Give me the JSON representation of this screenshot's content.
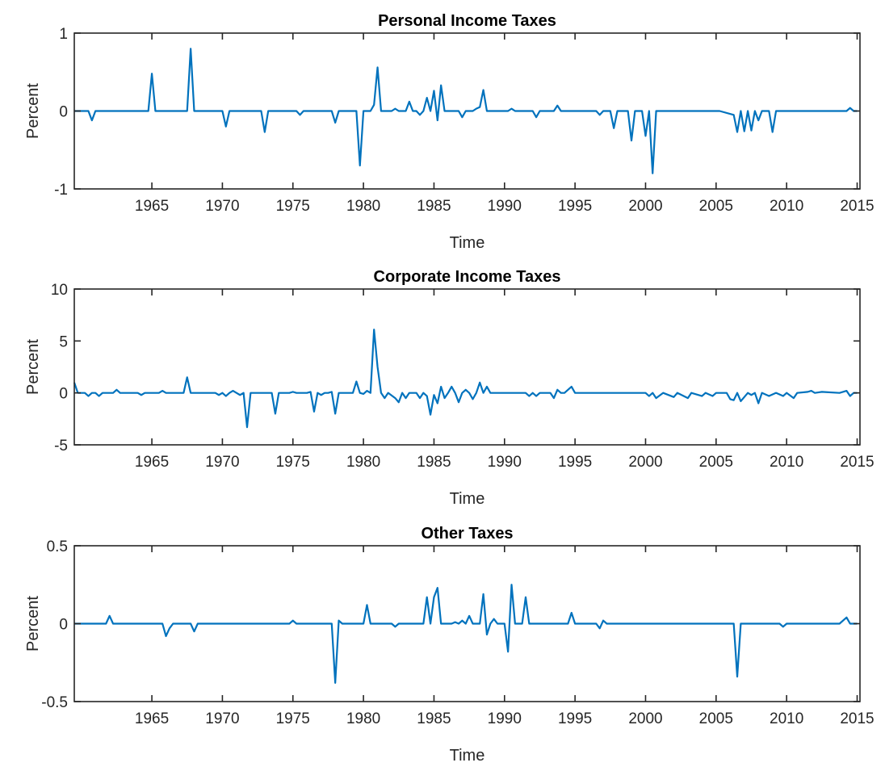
{
  "chart_data": [
    {
      "type": "line",
      "title": "Personal Income Taxes",
      "xlabel": "Time",
      "ylabel": "Percent",
      "x": [
        1959.5,
        1960.5,
        1960.75,
        1961.0,
        1964.75,
        1965.0,
        1965.25,
        1967.5,
        1967.75,
        1968.0,
        1970.0,
        1970.25,
        1970.5,
        1972.75,
        1973.0,
        1973.25,
        1975.25,
        1975.5,
        1975.75,
        1977.75,
        1978.0,
        1978.25,
        1979.5,
        1979.75,
        1980.0,
        1980.5,
        1980.75,
        1981.0,
        1981.25,
        1982.0,
        1982.25,
        1982.5,
        1983.0,
        1983.25,
        1983.5,
        1983.75,
        1984.0,
        1984.25,
        1984.5,
        1984.75,
        1985.0,
        1985.25,
        1985.5,
        1985.75,
        1986.75,
        1987.0,
        1987.25,
        1987.75,
        1988.0,
        1988.25,
        1988.5,
        1988.75,
        1990.25,
        1990.5,
        1990.75,
        1992.0,
        1992.25,
        1992.5,
        1993.5,
        1993.75,
        1994.0,
        1996.5,
        1996.75,
        1997.0,
        1997.5,
        1997.75,
        1998.0,
        1998.75,
        1999.0,
        1999.25,
        1999.75,
        2000.0,
        2000.25,
        2000.5,
        2000.75,
        2005.25,
        2006.25,
        2006.5,
        2006.75,
        2007.0,
        2007.25,
        2007.5,
        2007.75,
        2008.0,
        2008.25,
        2008.75,
        2009.0,
        2009.25,
        2011.75,
        2014.25,
        2014.5,
        2014.75,
        2015.0
      ],
      "series": [
        {
          "color": "#0072bd",
          "values": [
            0,
            0,
            -0.12,
            0,
            0,
            0.48,
            0,
            0,
            0.8,
            0,
            0,
            -0.2,
            0,
            0,
            -0.27,
            0,
            0,
            -0.05,
            0,
            0,
            -0.15,
            0,
            0,
            -0.7,
            0,
            0,
            0.08,
            0.56,
            0,
            0,
            0.03,
            0,
            0,
            0.12,
            0,
            0,
            -0.05,
            0,
            0.17,
            0,
            0.26,
            -0.12,
            0.33,
            0,
            0,
            -0.08,
            0,
            0,
            0.03,
            0.05,
            0.27,
            0,
            0,
            0.03,
            0,
            0,
            -0.08,
            0,
            0,
            0.07,
            0,
            0,
            -0.05,
            0,
            0,
            -0.22,
            0,
            0,
            -0.38,
            0,
            0,
            -0.32,
            0,
            -0.8,
            0,
            0,
            -0.05,
            -0.27,
            0,
            -0.26,
            0,
            -0.25,
            0,
            -0.12,
            0,
            0,
            -0.27,
            0,
            0,
            0,
            0.04,
            0,
            0
          ]
        }
      ],
      "xlim": [
        1959.5,
        2015.2
      ],
      "xticks": [
        1965,
        1970,
        1975,
        1980,
        1985,
        1990,
        1995,
        2000,
        2005,
        2010,
        2015
      ],
      "ylim": [
        -1,
        1
      ],
      "yticks": [
        -1,
        0,
        1
      ]
    },
    {
      "type": "line",
      "title": "Corporate Income Taxes",
      "xlabel": "Time",
      "ylabel": "Percent",
      "x": [
        1959.5,
        1959.75,
        1960.25,
        1960.5,
        1960.75,
        1961.0,
        1961.25,
        1961.5,
        1962.25,
        1962.5,
        1962.75,
        1964.0,
        1964.25,
        1964.5,
        1965.5,
        1965.75,
        1966.0,
        1967.25,
        1967.5,
        1967.75,
        1969.5,
        1969.75,
        1970.0,
        1970.25,
        1970.5,
        1970.75,
        1971.0,
        1971.25,
        1971.5,
        1971.75,
        1972.0,
        1973.5,
        1973.75,
        1974.0,
        1974.75,
        1975.0,
        1975.25,
        1976.0,
        1976.25,
        1976.5,
        1976.75,
        1977.0,
        1977.25,
        1977.5,
        1977.75,
        1978.0,
        1978.25,
        1979.25,
        1979.5,
        1979.75,
        1980.0,
        1980.25,
        1980.5,
        1980.75,
        1981.0,
        1981.25,
        1981.5,
        1981.75,
        1982.25,
        1982.5,
        1982.75,
        1983.0,
        1983.25,
        1983.75,
        1984.0,
        1984.25,
        1984.5,
        1984.75,
        1985.0,
        1985.25,
        1985.5,
        1985.75,
        1986.0,
        1986.25,
        1986.5,
        1986.75,
        1987.0,
        1987.25,
        1987.5,
        1987.75,
        1988.0,
        1988.25,
        1988.5,
        1988.75,
        1989.0,
        1991.5,
        1991.75,
        1992.0,
        1992.25,
        1992.5,
        1993.25,
        1993.5,
        1993.75,
        1994.0,
        1994.25,
        1994.75,
        1995.0,
        1997.25,
        2000.0,
        2000.25,
        2000.5,
        2000.75,
        2001.25,
        2002.0,
        2002.25,
        2003.0,
        2003.25,
        2004.0,
        2004.25,
        2004.75,
        2005.0,
        2005.75,
        2006.0,
        2006.25,
        2006.5,
        2006.75,
        2007.25,
        2007.5,
        2007.75,
        2008.0,
        2008.25,
        2008.75,
        2009.25,
        2009.75,
        2010.0,
        2010.5,
        2010.75,
        2011.5,
        2011.75,
        2012.0,
        2012.5,
        2013.75,
        2014.25,
        2014.5,
        2014.75,
        2015.0
      ],
      "series": [
        {
          "color": "#0072bd",
          "values": [
            1.0,
            0,
            0,
            -0.3,
            0,
            0,
            -0.3,
            0,
            0,
            0.3,
            0,
            0,
            -0.2,
            0,
            0,
            0.2,
            0,
            0,
            1.5,
            0,
            0,
            -0.2,
            0,
            -0.3,
            0,
            0.2,
            0,
            -0.2,
            0,
            -3.3,
            0,
            0,
            -2.0,
            0,
            0,
            0.1,
            0,
            0,
            0.1,
            -1.8,
            0,
            -0.2,
            0,
            0,
            0.1,
            -2.0,
            0,
            0,
            1.1,
            0,
            -0.1,
            0.2,
            0,
            6.1,
            2.5,
            0,
            -0.5,
            0,
            -0.5,
            -0.9,
            0,
            -0.5,
            0,
            0,
            -0.5,
            0,
            -0.3,
            -2.1,
            -0.2,
            -1.0,
            0.6,
            -0.5,
            0,
            0.6,
            0,
            -0.9,
            0,
            0.3,
            0,
            -0.6,
            0,
            1.0,
            0,
            0.6,
            0,
            0,
            -0.3,
            0,
            -0.3,
            0,
            0,
            -0.5,
            0.3,
            0,
            0,
            0.6,
            0,
            0,
            0,
            -0.3,
            0,
            -0.5,
            0,
            -0.4,
            0,
            -0.5,
            0,
            -0.3,
            0,
            -0.3,
            0,
            0,
            -0.6,
            -0.7,
            0,
            -0.8,
            0,
            -0.2,
            0,
            -1.0,
            0,
            -0.3,
            0,
            -0.3,
            0,
            -0.5,
            0,
            0.1,
            0.2,
            0,
            0.1,
            0,
            0.2,
            -0.3,
            0,
            0
          ]
        }
      ],
      "xlim": [
        1959.5,
        2015.2
      ],
      "xticks": [
        1965,
        1970,
        1975,
        1980,
        1985,
        1990,
        1995,
        2000,
        2005,
        2010,
        2015
      ],
      "ylim": [
        -5,
        10
      ],
      "yticks": [
        -5,
        0,
        5,
        10
      ]
    },
    {
      "type": "line",
      "title": "Other Taxes",
      "xlabel": "Time",
      "ylabel": "Percent",
      "x": [
        1959.5,
        1960.5,
        1961.75,
        1962.0,
        1962.25,
        1965.75,
        1966.0,
        1966.25,
        1966.5,
        1967.75,
        1968.0,
        1968.25,
        1974.75,
        1975.0,
        1975.25,
        1977.75,
        1978.0,
        1978.25,
        1978.5,
        1980.0,
        1980.25,
        1980.5,
        1982.0,
        1982.25,
        1982.5,
        1984.25,
        1984.5,
        1984.75,
        1985.0,
        1985.25,
        1985.5,
        1986.25,
        1986.5,
        1986.75,
        1987.0,
        1987.25,
        1987.5,
        1987.75,
        1988.25,
        1988.5,
        1988.75,
        1989.0,
        1989.25,
        1989.5,
        1990.0,
        1990.25,
        1990.5,
        1990.75,
        1991.25,
        1991.5,
        1991.75,
        1994.5,
        1994.75,
        1995.0,
        1996.5,
        1996.75,
        1997.0,
        1997.25,
        2006.25,
        2006.5,
        2006.75,
        2009.5,
        2009.75,
        2010.0,
        2013.75,
        2014.25,
        2014.5,
        2015.0
      ],
      "series": [
        {
          "color": "#0072bd",
          "values": [
            0,
            0,
            0,
            0.05,
            0,
            0,
            -0.08,
            -0.03,
            0,
            0,
            -0.05,
            0,
            0,
            0.02,
            0,
            0,
            -0.38,
            0.02,
            0,
            0,
            0.12,
            0,
            0,
            -0.02,
            0,
            0,
            0.17,
            0,
            0.17,
            0.23,
            0,
            0,
            0.01,
            0,
            0.02,
            0,
            0.05,
            0,
            0,
            0.19,
            -0.07,
            0,
            0.03,
            0,
            0,
            -0.18,
            0.25,
            0,
            0,
            0.17,
            0,
            0,
            0.07,
            0,
            0,
            -0.03,
            0.02,
            0,
            0,
            -0.34,
            0,
            0,
            -0.02,
            0,
            0,
            0.04,
            0,
            0
          ]
        }
      ],
      "xlim": [
        1959.5,
        2015.2
      ],
      "xticks": [
        1965,
        1970,
        1975,
        1980,
        1985,
        1990,
        1995,
        2000,
        2005,
        2010,
        2015
      ],
      "ylim": [
        -0.5,
        0.5
      ],
      "yticks": [
        -0.5,
        0,
        0.5
      ]
    }
  ]
}
